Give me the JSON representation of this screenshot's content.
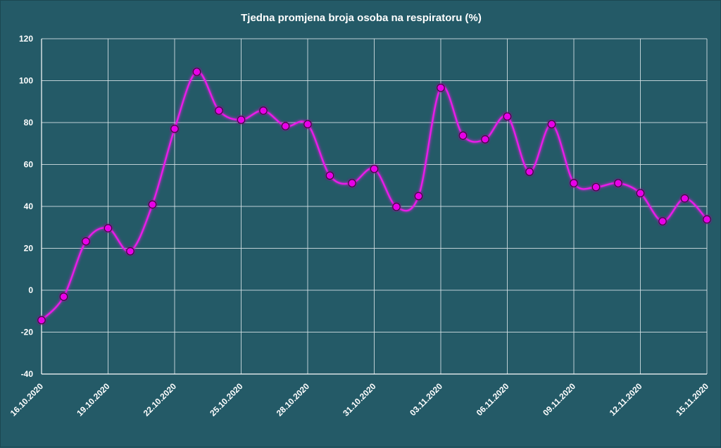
{
  "chart_data": {
    "type": "line",
    "title": "Tjedna promjena broja osoba na respiratoru (%)",
    "xlabel": "",
    "ylabel": "",
    "ylim": [
      -40,
      120
    ],
    "yticks": [
      -40,
      -20,
      0,
      20,
      40,
      60,
      80,
      100,
      120
    ],
    "grid": true,
    "smooth": true,
    "x": [
      "16.10.2020",
      "17.10.2020",
      "18.10.2020",
      "19.10.2020",
      "20.10.2020",
      "21.10.2020",
      "22.10.2020",
      "23.10.2020",
      "24.10.2020",
      "25.10.2020",
      "26.10.2020",
      "27.10.2020",
      "28.10.2020",
      "29.10.2020",
      "30.10.2020",
      "31.10.2020",
      "01.11.2020",
      "02.11.2020",
      "03.11.2020",
      "04.11.2020",
      "05.11.2020",
      "06.11.2020",
      "07.11.2020",
      "08.11.2020",
      "09.11.2020",
      "10.11.2020",
      "11.11.2020",
      "12.11.2020",
      "13.11.2020",
      "14.11.2020",
      "15.11.2020"
    ],
    "x_tick_labels": [
      "16.10.2020",
      "19.10.2020",
      "22.10.2020",
      "25.10.2020",
      "28.10.2020",
      "31.10.2020",
      "03.11.2020",
      "06.11.2020",
      "09.11.2020",
      "12.11.2020",
      "15.11.2020"
    ],
    "series": [
      {
        "values": [
          -14.3,
          -3.1,
          23.3,
          29.6,
          18.6,
          40.9,
          77.0,
          104.2,
          85.7,
          81.3,
          85.7,
          78.3,
          79.2,
          54.7,
          51.1,
          57.9,
          39.8,
          44.9,
          96.6,
          73.8,
          72.0,
          82.9,
          56.5,
          79.2,
          51.1,
          49.2,
          51.1,
          46.3,
          32.9,
          43.8,
          33.8
        ],
        "color": "#e81be8",
        "marker_color": "#e800e8"
      }
    ]
  }
}
